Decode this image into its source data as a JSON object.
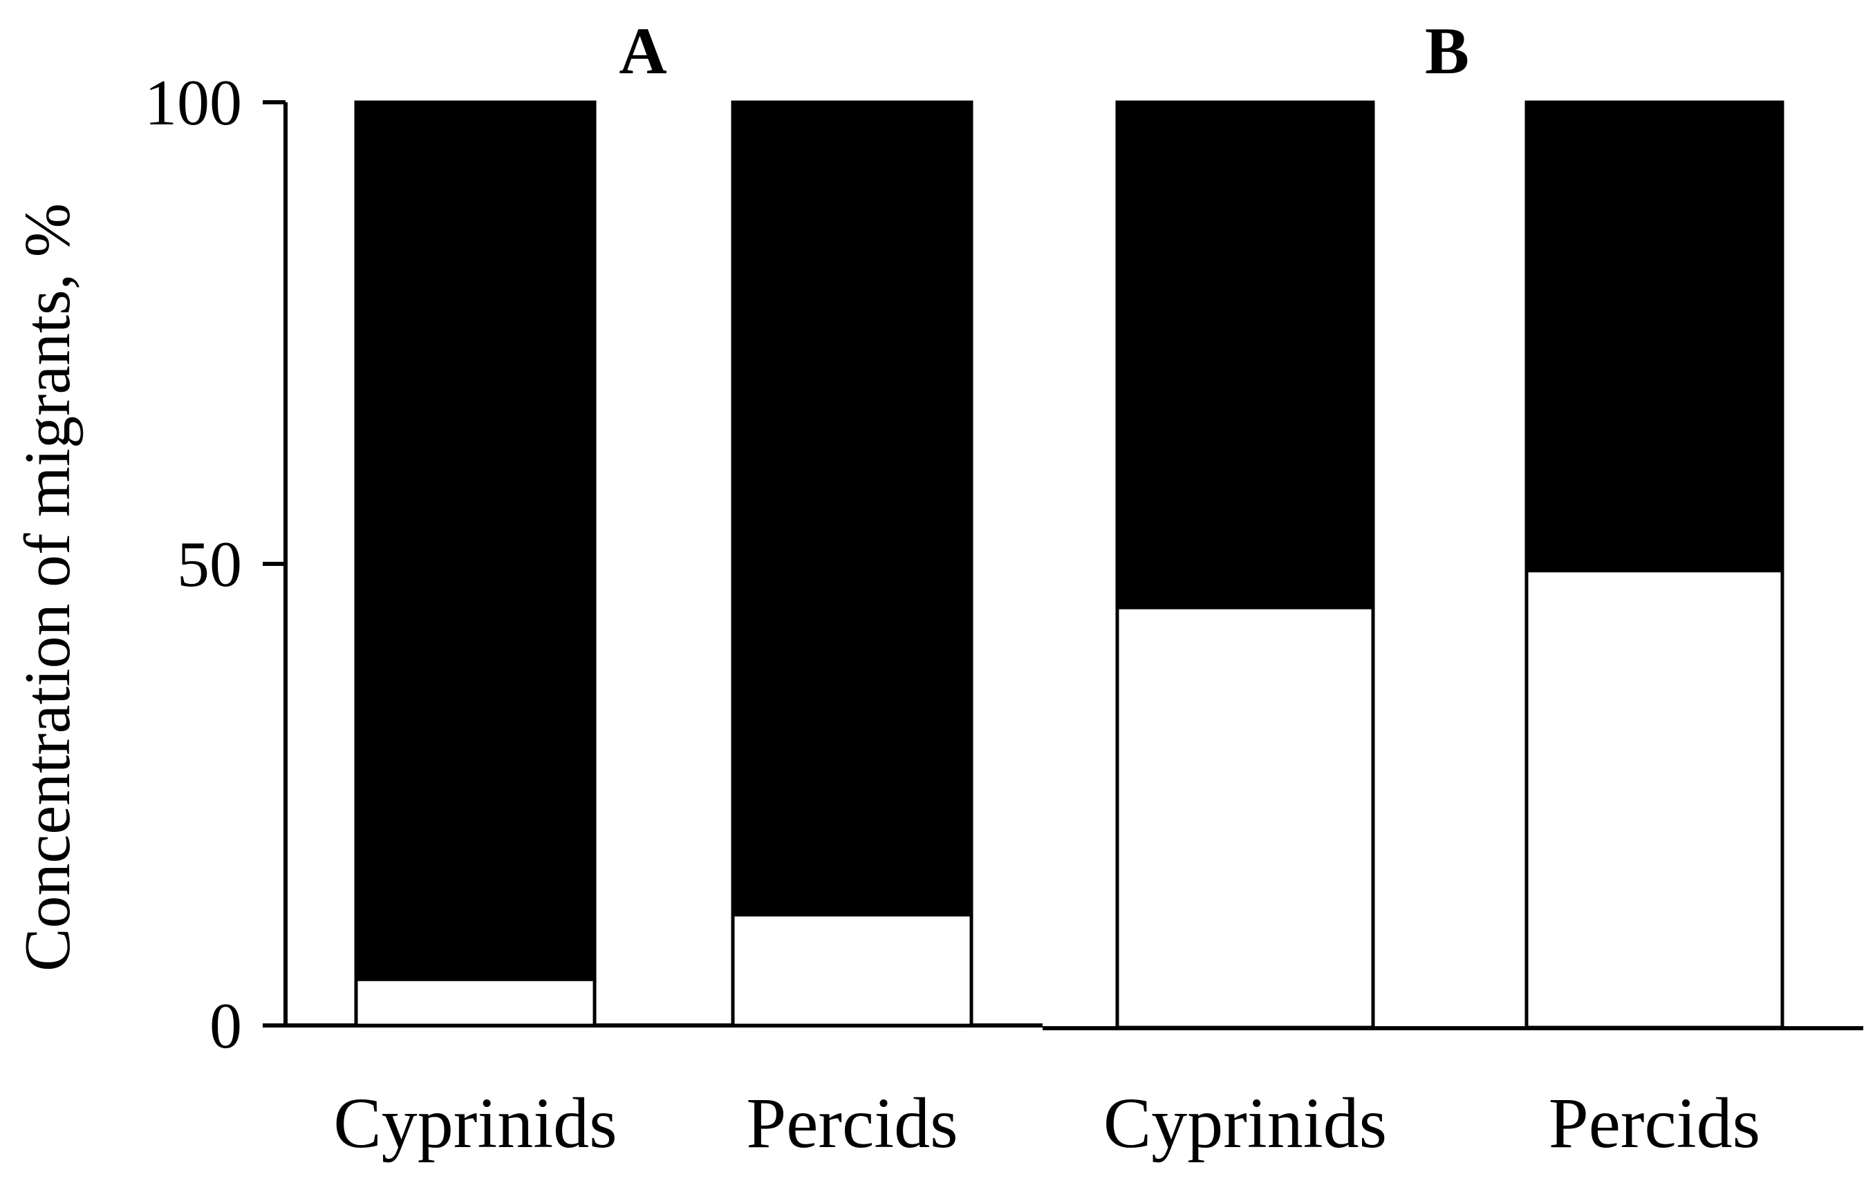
{
  "chart_data": {
    "type": "bar",
    "stacked": true,
    "panels": [
      "A",
      "B"
    ],
    "categories": [
      "Cyprinids",
      "Percids",
      "Cyprinids",
      "Percids"
    ],
    "panel_of_category": [
      0,
      0,
      1,
      1
    ],
    "series": [
      {
        "values": [
          5,
          12,
          45.5,
          49.5
        ],
        "color": "#ffffff"
      },
      {
        "values": [
          95,
          88,
          54.5,
          50.5
        ],
        "color": "#000000"
      }
    ],
    "ylabel": "Concentration of migrants, %",
    "yticks": [
      0,
      50,
      100
    ],
    "ylim": [
      0,
      100
    ],
    "grid": false,
    "legend": "none"
  }
}
